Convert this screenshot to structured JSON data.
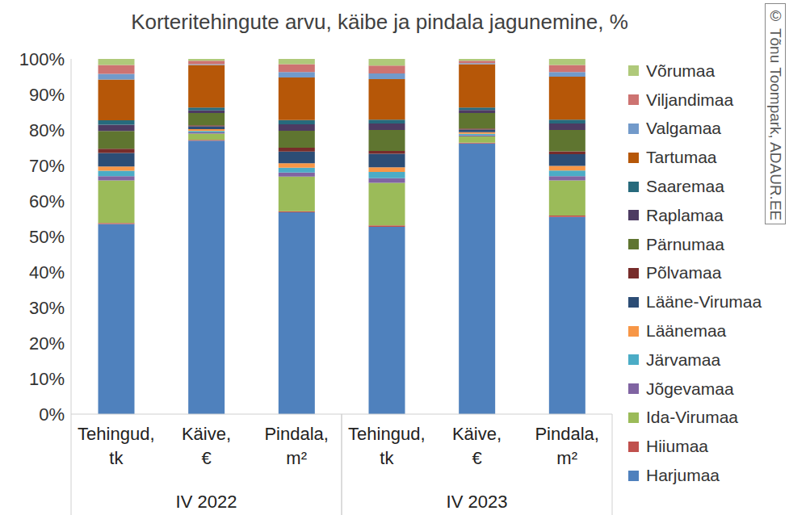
{
  "chart_data": {
    "type": "bar",
    "stacked": true,
    "title": "Korteritehingute arvu, käibe ja pindala jagunemine, %",
    "annotations": [
      "© Tõnu Toompark, ADAUR.EE"
    ],
    "categories": [
      "Tehingud, tk",
      "Käive, €",
      "Pindala, m²",
      "Tehingud, tk",
      "Käive, €",
      "Pindala, m²"
    ],
    "category_groups": [
      "IV 2022",
      "IV 2023"
    ],
    "ylim": [
      0,
      100
    ],
    "yticks": [
      {
        "value": 0,
        "label": "0%"
      },
      {
        "value": 10,
        "label": "10%"
      },
      {
        "value": 20,
        "label": "20%"
      },
      {
        "value": 30,
        "label": "30%"
      },
      {
        "value": 40,
        "label": "40%"
      },
      {
        "value": 50,
        "label": "50%"
      },
      {
        "value": 60,
        "label": "60%"
      },
      {
        "value": 70,
        "label": "70%"
      },
      {
        "value": 80,
        "label": "80%"
      },
      {
        "value": 90,
        "label": "90%"
      },
      {
        "value": 100,
        "label": "100%"
      }
    ],
    "grid": false,
    "legend": "right",
    "series": [
      {
        "name": "Harjumaa",
        "color": "#4f81bd",
        "values": [
          53.5,
          77.0,
          56.8,
          52.7,
          76.2,
          55.5
        ]
      },
      {
        "name": "Hiiumaa",
        "color": "#c0504d",
        "values": [
          0.3,
          0.2,
          0.3,
          0.4,
          0.2,
          0.4
        ]
      },
      {
        "name": "Ida-Virumaa",
        "color": "#9bbb59",
        "values": [
          12.0,
          1.8,
          9.8,
          12.0,
          1.8,
          9.9
        ]
      },
      {
        "name": "Jõgevamaa",
        "color": "#8064a2",
        "values": [
          1.2,
          0.3,
          1.1,
          1.3,
          0.3,
          1.2
        ]
      },
      {
        "name": "Järvamaa",
        "color": "#4bacc6",
        "values": [
          1.5,
          0.4,
          1.4,
          1.8,
          0.4,
          1.6
        ]
      },
      {
        "name": "Läänemaa",
        "color": "#f79646",
        "values": [
          1.2,
          0.5,
          1.2,
          1.3,
          0.5,
          1.3
        ]
      },
      {
        "name": "Lääne-Virumaa",
        "color": "#2c4d75",
        "values": [
          3.8,
          0.8,
          3.3,
          3.8,
          0.7,
          3.3
        ]
      },
      {
        "name": "Põlvamaa",
        "color": "#772c2a",
        "values": [
          1.2,
          0.3,
          1.1,
          0.8,
          0.3,
          0.8
        ]
      },
      {
        "name": "Pärnumaa",
        "color": "#5f7530",
        "values": [
          5.0,
          3.5,
          4.8,
          5.9,
          4.4,
          6.0
        ]
      },
      {
        "name": "Raplamaa",
        "color": "#4d3b62",
        "values": [
          1.8,
          0.7,
          1.8,
          1.8,
          0.8,
          1.8
        ]
      },
      {
        "name": "Saaremaa",
        "color": "#276a7c",
        "values": [
          1.2,
          0.8,
          1.2,
          1.1,
          0.7,
          1.1
        ]
      },
      {
        "name": "Tartumaa",
        "color": "#b65708",
        "values": [
          11.5,
          12.0,
          12.0,
          11.4,
          12.2,
          12.1
        ]
      },
      {
        "name": "Valgamaa",
        "color": "#729aca",
        "values": [
          1.6,
          0.2,
          1.5,
          1.6,
          0.3,
          1.3
        ]
      },
      {
        "name": "Viljandimaa",
        "color": "#cd7371",
        "values": [
          2.5,
          1.0,
          2.2,
          2.2,
          0.7,
          2.0
        ]
      },
      {
        "name": "Võrumaa",
        "color": "#afc97a",
        "values": [
          1.7,
          0.5,
          1.5,
          1.9,
          0.5,
          1.7
        ]
      }
    ]
  }
}
